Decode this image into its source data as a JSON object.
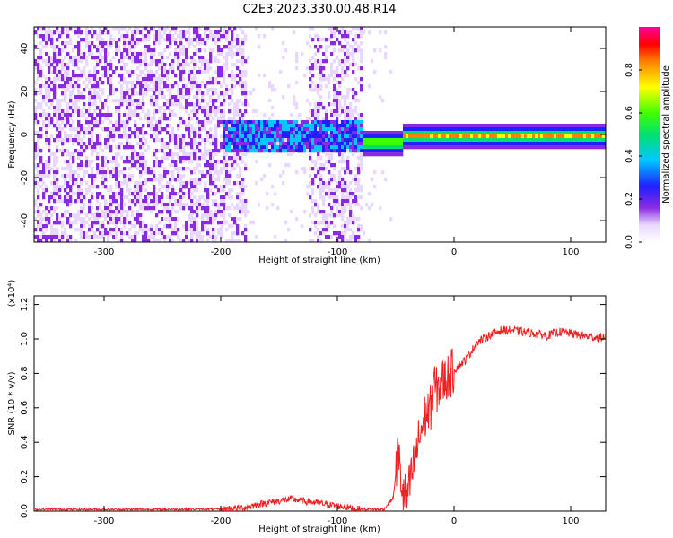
{
  "title": "C2E3.2023.330.00.48.R14",
  "chart_data": [
    {
      "type": "heatmap",
      "xlabel": "Height of straight line (km)",
      "ylabel": "Frequency (Hz)",
      "xlim": [
        -360,
        130
      ],
      "ylim": [
        -50,
        50
      ],
      "x_ticks": [
        -300,
        -200,
        -100,
        0,
        100
      ],
      "y_ticks": [
        -40,
        -20,
        0,
        20,
        40
      ],
      "x_tick_labels": [
        "-300",
        "-200",
        "-100",
        "0",
        "100"
      ],
      "y_tick_labels": [
        "-40",
        "-20",
        "0",
        "20",
        "40"
      ],
      "colorbar": {
        "label": "Normalized spectral amplitude",
        "range": [
          0,
          1
        ],
        "ticks": [
          0,
          0.2,
          0.4,
          0.6,
          0.8
        ],
        "tick_labels": [
          "0.0",
          "0.2",
          "0.4",
          "0.6",
          "0.8"
        ],
        "colormap": "rainbow (white-purple-blue-cyan-green-yellow-red-magenta)"
      },
      "regions": [
        {
          "x_range": [
            -360,
            -200
          ],
          "description": "noise",
          "amplitude": 0.1
        },
        {
          "x_range": [
            -200,
            -80
          ],
          "signal_band_hz": [
            -8,
            8
          ],
          "amplitude": 0.3
        },
        {
          "x_range": [
            -80,
            -45
          ],
          "signal_center_hz": -3,
          "amplitude": 0.6
        },
        {
          "x_range": [
            -45,
            130
          ],
          "signal_center_hz": 0,
          "amplitude": 0.8
        }
      ]
    },
    {
      "type": "line",
      "xlabel": "Height of straight line (km)",
      "ylabel": "SNR (10 * v/v)",
      "y_multiplier": "(x10⁴)",
      "xlim": [
        -360,
        130
      ],
      "ylim": [
        0,
        1.25
      ],
      "x_ticks": [
        -300,
        -200,
        -100,
        0,
        100
      ],
      "y_ticks": [
        0,
        0.2,
        0.4,
        0.6,
        0.8,
        1.0,
        1.2
      ],
      "x_tick_labels": [
        "-300",
        "-200",
        "-100",
        "0",
        "100"
      ],
      "y_tick_labels": [
        "0.0",
        "0.2",
        "0.4",
        "0.6",
        "0.8",
        "1.0",
        "1.2"
      ],
      "color": "#ee2222",
      "series": [
        {
          "x": [
            -360,
            -300,
            -250,
            -200,
            -180,
            -160,
            -140,
            -120,
            -100,
            -80,
            -60,
            -52,
            -48,
            -44,
            -40,
            -35,
            -30,
            -25,
            -20,
            -18,
            -15,
            -10,
            -5,
            0,
            10,
            20,
            30,
            40,
            50,
            60,
            70,
            80,
            90,
            95,
            100,
            110,
            120,
            130
          ],
          "y": [
            0.01,
            0.01,
            0.01,
            0.012,
            0.02,
            0.05,
            0.07,
            0.05,
            0.03,
            0.01,
            0.01,
            0.08,
            0.35,
            0.1,
            0.08,
            0.25,
            0.42,
            0.55,
            0.6,
            0.75,
            0.7,
            0.75,
            0.78,
            0.82,
            0.88,
            0.98,
            1.02,
            1.05,
            1.05,
            1.04,
            1.03,
            1.02,
            1.04,
            1.04,
            1.03,
            1.02,
            1.01,
            1.01
          ]
        }
      ]
    }
  ]
}
